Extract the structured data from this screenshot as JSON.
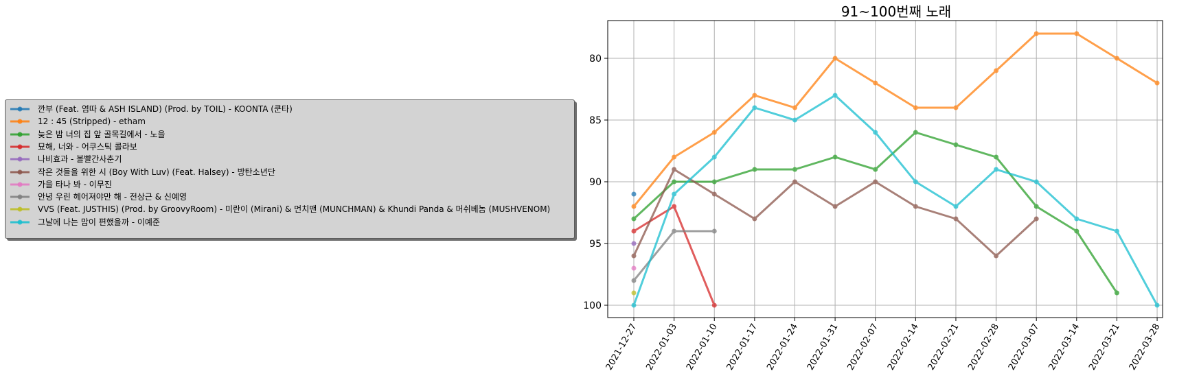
{
  "chart_data": {
    "type": "line",
    "title": "91~100번째 노래",
    "xlabel": "",
    "ylabel": "",
    "categories": [
      "2021-12-27",
      "2022-01-03",
      "2022-01-10",
      "2022-01-17",
      "2022-01-24",
      "2022-01-31",
      "2022-02-07",
      "2022-02-14",
      "2022-02-21",
      "2022-02-28",
      "2022-03-07",
      "2022-03-14",
      "2022-03-21",
      "2022-03-28"
    ],
    "ylim": [
      101,
      77
    ],
    "y_inverted": true,
    "yticks": [
      80,
      85,
      90,
      95,
      100
    ],
    "grid": true,
    "legend_position": "left, outside plot",
    "series": [
      {
        "name": "깐부 (Feat. 염따 & ASH ISLAND) (Prod. by TOIL) - KOONTA (쿤타)",
        "color": "#1f77b4",
        "values": [
          91,
          null,
          null,
          null,
          null,
          null,
          null,
          null,
          null,
          null,
          null,
          null,
          null,
          null
        ]
      },
      {
        "name": "12 : 45 (Stripped) - etham",
        "color": "#ff7f0e",
        "values": [
          92,
          88,
          86,
          83,
          84,
          80,
          82,
          84,
          84,
          81,
          78,
          78,
          80,
          82
        ]
      },
      {
        "name": "늦은 밤 너의 집 앞 골목길에서 - 노을",
        "color": "#2ca02c",
        "values": [
          93,
          90,
          90,
          89,
          89,
          88,
          89,
          86,
          87,
          88,
          92,
          94,
          99,
          null
        ]
      },
      {
        "name": "묘해, 너와 - 어쿠스틱 콜라보",
        "color": "#d62728",
        "values": [
          94,
          92,
          100,
          null,
          null,
          null,
          null,
          null,
          null,
          null,
          null,
          null,
          null,
          null
        ]
      },
      {
        "name": "나비효과 - 볼빨간사춘기",
        "color": "#9467bd",
        "values": [
          95,
          null,
          null,
          null,
          null,
          null,
          null,
          null,
          null,
          null,
          null,
          null,
          null,
          null
        ]
      },
      {
        "name": "작은 것들을 위한 시 (Boy With Luv) (Feat. Halsey) - 방탄소년단",
        "color": "#8c564b",
        "values": [
          96,
          89,
          91,
          93,
          90,
          92,
          90,
          92,
          93,
          96,
          93,
          null,
          null,
          null
        ]
      },
      {
        "name": "가을 타나 봐 - 이무진",
        "color": "#e377c2",
        "values": [
          97,
          null,
          null,
          null,
          null,
          null,
          null,
          null,
          null,
          null,
          null,
          null,
          null,
          null
        ]
      },
      {
        "name": "안녕 우린 헤어져야만 해 - 전상근 & 신예영",
        "color": "#7f7f7f",
        "values": [
          98,
          94,
          94,
          null,
          null,
          null,
          null,
          null,
          null,
          null,
          null,
          null,
          null,
          null
        ]
      },
      {
        "name": "VVS (Feat. JUSTHIS) (Prod. by GroovyRoom) - 미란이 (Mirani) & 먼치맨 (MUNCHMAN) & Khundi Panda & 머쉬베놈 (MUSHVENOM)",
        "color": "#bcbd22",
        "values": [
          99,
          null,
          null,
          null,
          null,
          null,
          null,
          null,
          null,
          null,
          null,
          null,
          null,
          null
        ]
      },
      {
        "name": "그날에 나는 맘이 편했을까 - 이예준",
        "color": "#17becf",
        "values": [
          100,
          91,
          88,
          84,
          85,
          83,
          86,
          90,
          92,
          89,
          90,
          93,
          94,
          100
        ]
      }
    ]
  }
}
